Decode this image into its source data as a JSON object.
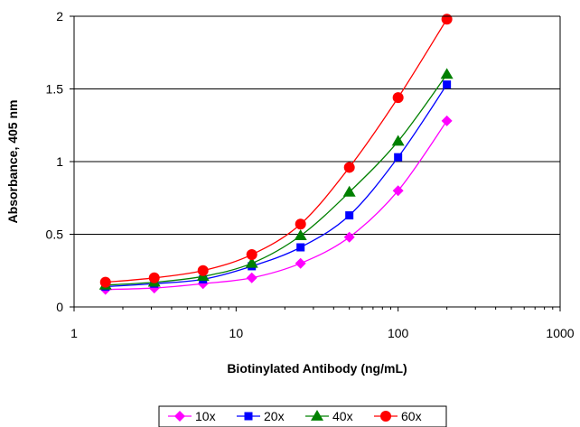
{
  "chart_data": {
    "type": "scatter",
    "title": "",
    "xlabel": "Biotinylated Antibody (ng/mL)",
    "ylabel": "Absorbance, 405 nm",
    "x_scale": "log",
    "xlim": [
      1,
      1000
    ],
    "ylim": [
      0,
      2
    ],
    "x_ticks": [
      1,
      10,
      100,
      1000
    ],
    "x_tick_labels": [
      "1",
      "10",
      "100",
      "1000"
    ],
    "y_ticks": [
      0,
      0.5,
      1,
      1.5,
      2
    ],
    "y_tick_labels": [
      "0",
      "0.5",
      "1",
      "1.5",
      "2"
    ],
    "grid": "horizontal",
    "legend": "bottom",
    "x": [
      1.5625,
      3.125,
      6.25,
      12.5,
      25,
      50,
      100,
      200
    ],
    "series": [
      {
        "name": "10x",
        "color": "#ff00ff",
        "marker": "diamond",
        "values": [
          0.12,
          0.13,
          0.16,
          0.2,
          0.3,
          0.48,
          0.8,
          1.28
        ]
      },
      {
        "name": "20x",
        "color": "#0000ff",
        "marker": "square",
        "values": [
          0.14,
          0.16,
          0.19,
          0.28,
          0.41,
          0.63,
          1.03,
          1.53
        ]
      },
      {
        "name": "40x",
        "color": "#008000",
        "marker": "triangle",
        "values": [
          0.15,
          0.17,
          0.21,
          0.3,
          0.49,
          0.79,
          1.14,
          1.6
        ]
      },
      {
        "name": "60x",
        "color": "#ff0000",
        "marker": "circle",
        "values": [
          0.17,
          0.2,
          0.25,
          0.36,
          0.57,
          0.96,
          1.44,
          1.98
        ]
      }
    ]
  }
}
